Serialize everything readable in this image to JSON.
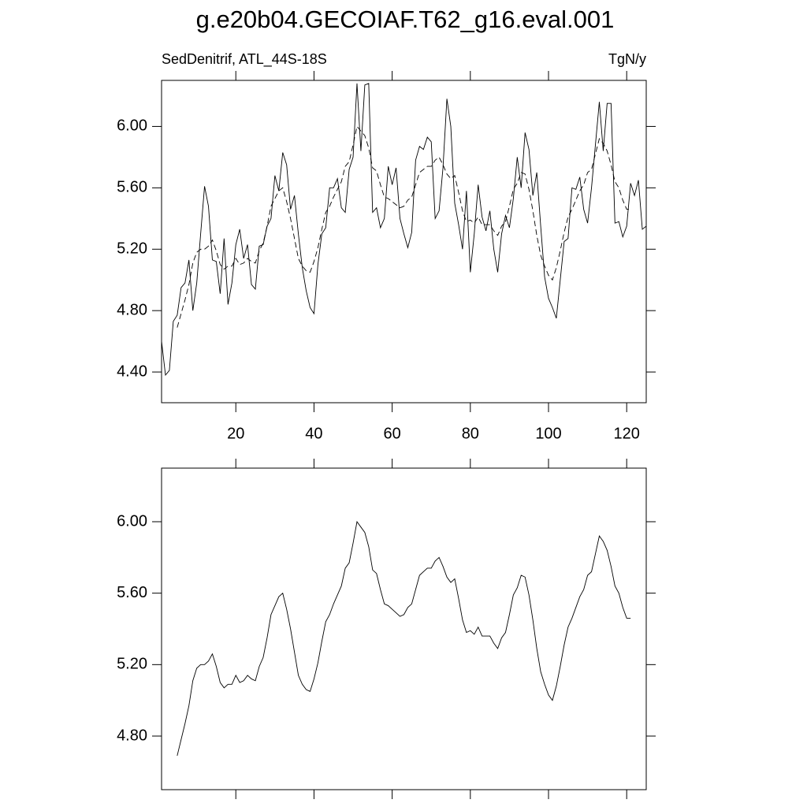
{
  "title": "g.e20b04.GECOIAF.T62_g16.eval.001",
  "chart_data": [
    {
      "type": "line",
      "left_label": "SedDenitrif, ATL_44S-18S",
      "right_label": "TgN/y",
      "x": [
        1,
        2,
        3,
        4,
        5,
        6,
        7,
        8,
        9,
        10,
        11,
        12,
        13,
        14,
        15,
        16,
        17,
        18,
        19,
        20,
        21,
        22,
        23,
        24,
        25,
        26,
        27,
        28,
        29,
        30,
        31,
        32,
        33,
        34,
        35,
        36,
        37,
        38,
        39,
        40,
        41,
        42,
        43,
        44,
        45,
        46,
        47,
        48,
        49,
        50,
        51,
        52,
        53,
        54,
        55,
        56,
        57,
        58,
        59,
        60,
        61,
        62,
        63,
        64,
        65,
        66,
        67,
        68,
        69,
        70,
        71,
        72,
        73,
        74,
        75,
        76,
        77,
        78,
        79,
        80,
        81,
        82,
        83,
        84,
        85,
        86,
        87,
        88,
        89,
        90,
        91,
        92,
        93,
        94,
        95,
        96,
        97,
        98,
        99,
        100,
        101,
        102,
        103,
        104,
        105,
        106,
        107,
        108,
        109,
        110,
        111,
        112,
        113,
        114,
        115,
        116,
        117,
        118,
        119,
        120,
        121,
        122,
        123,
        124,
        125
      ],
      "series": [
        {
          "color": "#000000",
          "line_style": "solid",
          "values": [
            4.6,
            4.38,
            4.41,
            4.73,
            4.77,
            4.95,
            4.98,
            5.13,
            4.8,
            4.98,
            5.3,
            5.61,
            5.48,
            5.13,
            5.12,
            4.91,
            5.27,
            4.84,
            4.98,
            5.23,
            5.33,
            5.14,
            5.23,
            4.97,
            4.94,
            5.22,
            5.23,
            5.35,
            5.4,
            5.68,
            5.58,
            5.83,
            5.75,
            5.46,
            5.55,
            5.3,
            5.08,
            4.93,
            4.82,
            4.78,
            5.1,
            5.3,
            5.34,
            5.6,
            5.6,
            5.66,
            5.47,
            5.44,
            5.72,
            5.8,
            6.28,
            5.84,
            6.27,
            6.28,
            5.44,
            5.47,
            5.34,
            5.4,
            5.74,
            5.62,
            5.73,
            5.4,
            5.3,
            5.21,
            5.31,
            5.78,
            5.87,
            5.85,
            5.93,
            5.9,
            5.4,
            5.45,
            5.73,
            6.18,
            6.0,
            5.5,
            5.36,
            5.2,
            5.58,
            5.05,
            5.3,
            5.62,
            5.41,
            5.32,
            5.45,
            5.2,
            5.05,
            5.3,
            5.42,
            5.34,
            5.53,
            5.8,
            5.6,
            5.96,
            5.85,
            5.55,
            5.7,
            5.35,
            5.02,
            4.88,
            4.82,
            4.75,
            5.0,
            5.25,
            5.27,
            5.6,
            5.59,
            5.67,
            5.46,
            5.37,
            5.6,
            5.88,
            6.16,
            5.84,
            6.15,
            6.15,
            5.37,
            5.38,
            5.28,
            5.35,
            5.63,
            5.55,
            5.65,
            5.33,
            5.35
          ]
        },
        {
          "color": "#000000",
          "line_style": "dashed",
          "values": [
            null,
            null,
            null,
            null,
            4.69,
            4.78,
            4.87,
            4.97,
            5.11,
            5.18,
            5.2,
            5.2,
            5.22,
            5.26,
            5.19,
            5.1,
            5.07,
            5.09,
            5.09,
            5.14,
            5.1,
            5.11,
            5.14,
            5.12,
            5.11,
            5.19,
            5.24,
            5.35,
            5.48,
            5.53,
            5.58,
            5.6,
            5.51,
            5.4,
            5.27,
            5.14,
            5.09,
            5.06,
            5.05,
            5.12,
            5.21,
            5.33,
            5.44,
            5.48,
            5.54,
            5.59,
            5.64,
            5.74,
            5.77,
            5.88,
            6.0,
            5.97,
            5.94,
            5.86,
            5.73,
            5.71,
            5.62,
            5.54,
            5.53,
            5.51,
            5.49,
            5.47,
            5.48,
            5.52,
            5.54,
            5.62,
            5.7,
            5.72,
            5.74,
            5.74,
            5.78,
            5.8,
            5.75,
            5.69,
            5.66,
            5.68,
            5.57,
            5.45,
            5.38,
            5.39,
            5.37,
            5.41,
            5.36,
            5.36,
            5.36,
            5.32,
            5.29,
            5.35,
            5.38,
            5.48,
            5.59,
            5.63,
            5.7,
            5.69,
            5.59,
            5.45,
            5.29,
            5.16,
            5.09,
            5.03,
            5.0,
            5.08,
            5.19,
            5.31,
            5.41,
            5.46,
            5.52,
            5.58,
            5.62,
            5.7,
            5.72,
            5.82,
            5.92,
            5.89,
            5.84,
            5.75,
            5.64,
            5.6,
            5.52,
            5.46,
            5.46,
            null,
            null,
            null,
            null
          ]
        }
      ],
      "xlim": [
        1,
        125
      ],
      "xticks": [
        20,
        40,
        60,
        80,
        100,
        120
      ],
      "xtick_labels": true,
      "ylim": [
        4.2,
        6.3
      ],
      "yticks": [
        {
          "value": 4.4,
          "label": "4.40"
        },
        {
          "value": 4.8,
          "label": "4.80"
        },
        {
          "value": 5.2,
          "label": "5.20"
        },
        {
          "value": 5.6,
          "label": "5.60"
        },
        {
          "value": 6.0,
          "label": "6.00"
        }
      ]
    },
    {
      "type": "line",
      "x": [
        1,
        2,
        3,
        4,
        5,
        6,
        7,
        8,
        9,
        10,
        11,
        12,
        13,
        14,
        15,
        16,
        17,
        18,
        19,
        20,
        21,
        22,
        23,
        24,
        25,
        26,
        27,
        28,
        29,
        30,
        31,
        32,
        33,
        34,
        35,
        36,
        37,
        38,
        39,
        40,
        41,
        42,
        43,
        44,
        45,
        46,
        47,
        48,
        49,
        50,
        51,
        52,
        53,
        54,
        55,
        56,
        57,
        58,
        59,
        60,
        61,
        62,
        63,
        64,
        65,
        66,
        67,
        68,
        69,
        70,
        71,
        72,
        73,
        74,
        75,
        76,
        77,
        78,
        79,
        80,
        81,
        82,
        83,
        84,
        85,
        86,
        87,
        88,
        89,
        90,
        91,
        92,
        93,
        94,
        95,
        96,
        97,
        98,
        99,
        100,
        101,
        102,
        103,
        104,
        105,
        106,
        107,
        108,
        109,
        110,
        111,
        112,
        113,
        114,
        115,
        116,
        117,
        118,
        119,
        120,
        121,
        122,
        123,
        124,
        125
      ],
      "series": [
        {
          "color": "#000000",
          "line_style": "solid",
          "values": [
            null,
            null,
            null,
            null,
            4.69,
            4.78,
            4.87,
            4.97,
            5.11,
            5.18,
            5.2,
            5.2,
            5.22,
            5.26,
            5.19,
            5.1,
            5.07,
            5.09,
            5.09,
            5.14,
            5.1,
            5.11,
            5.14,
            5.12,
            5.11,
            5.19,
            5.24,
            5.35,
            5.48,
            5.53,
            5.58,
            5.6,
            5.51,
            5.4,
            5.27,
            5.14,
            5.09,
            5.06,
            5.05,
            5.12,
            5.21,
            5.33,
            5.44,
            5.48,
            5.54,
            5.59,
            5.64,
            5.74,
            5.77,
            5.88,
            6.0,
            5.97,
            5.94,
            5.86,
            5.73,
            5.71,
            5.62,
            5.54,
            5.53,
            5.51,
            5.49,
            5.47,
            5.48,
            5.52,
            5.54,
            5.62,
            5.7,
            5.72,
            5.74,
            5.74,
            5.78,
            5.8,
            5.75,
            5.69,
            5.66,
            5.68,
            5.57,
            5.45,
            5.38,
            5.39,
            5.37,
            5.41,
            5.36,
            5.36,
            5.36,
            5.32,
            5.29,
            5.35,
            5.38,
            5.48,
            5.59,
            5.63,
            5.7,
            5.69,
            5.59,
            5.45,
            5.29,
            5.16,
            5.09,
            5.03,
            5.0,
            5.08,
            5.19,
            5.31,
            5.41,
            5.46,
            5.52,
            5.58,
            5.62,
            5.7,
            5.72,
            5.82,
            5.92,
            5.89,
            5.84,
            5.75,
            5.64,
            5.6,
            5.52,
            5.46,
            5.46,
            null,
            null,
            null,
            null
          ]
        }
      ],
      "xlim": [
        1,
        125
      ],
      "xticks": [
        20,
        40,
        60,
        80,
        100,
        120
      ],
      "xtick_labels": false,
      "ylim": [
        4.5,
        6.3
      ],
      "yticks": [
        {
          "value": 4.8,
          "label": "4.80"
        },
        {
          "value": 5.2,
          "label": "5.20"
        },
        {
          "value": 5.6,
          "label": "5.60"
        },
        {
          "value": 6.0,
          "label": "6.00"
        }
      ]
    }
  ]
}
